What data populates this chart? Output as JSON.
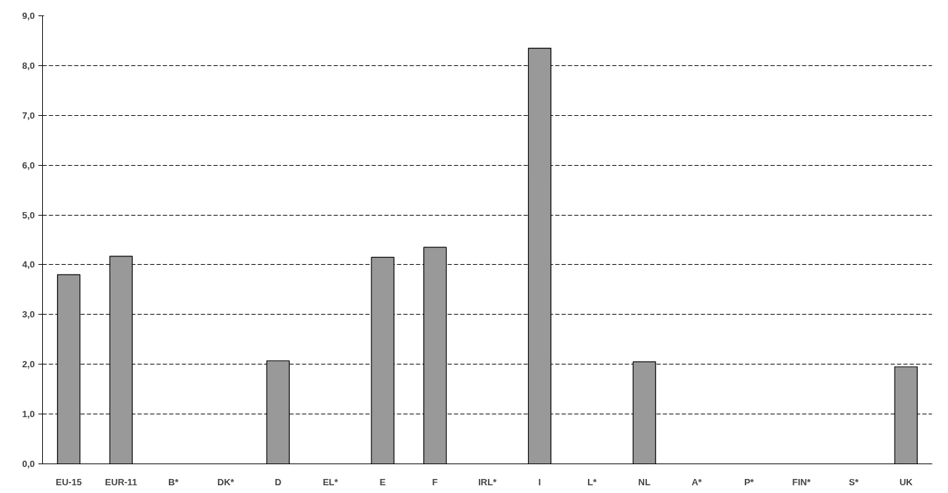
{
  "chart_data": {
    "type": "bar",
    "categories": [
      "EU-15",
      "EUR-11",
      "B*",
      "DK*",
      "D",
      "EL*",
      "E",
      "F",
      "IRL*",
      "I",
      "L*",
      "NL",
      "A*",
      "P*",
      "FIN*",
      "S*",
      "UK"
    ],
    "values": [
      3.8,
      4.17,
      null,
      null,
      2.07,
      null,
      4.15,
      4.35,
      null,
      8.35,
      null,
      2.05,
      null,
      null,
      null,
      null,
      1.95
    ],
    "color": "#999999",
    "ylim": [
      0,
      9
    ],
    "yticks": [
      {
        "value": 0,
        "label": "0,0"
      },
      {
        "value": 1,
        "label": "1,0"
      },
      {
        "value": 2,
        "label": "2,0"
      },
      {
        "value": 3,
        "label": "3,0"
      },
      {
        "value": 4,
        "label": "4,0"
      },
      {
        "value": 5,
        "label": "5,0"
      },
      {
        "value": 6,
        "label": "6,0"
      },
      {
        "value": 7,
        "label": "7,0"
      },
      {
        "value": 8,
        "label": "8,0"
      },
      {
        "value": 9,
        "label": "9,0"
      }
    ],
    "grid": "y"
  }
}
